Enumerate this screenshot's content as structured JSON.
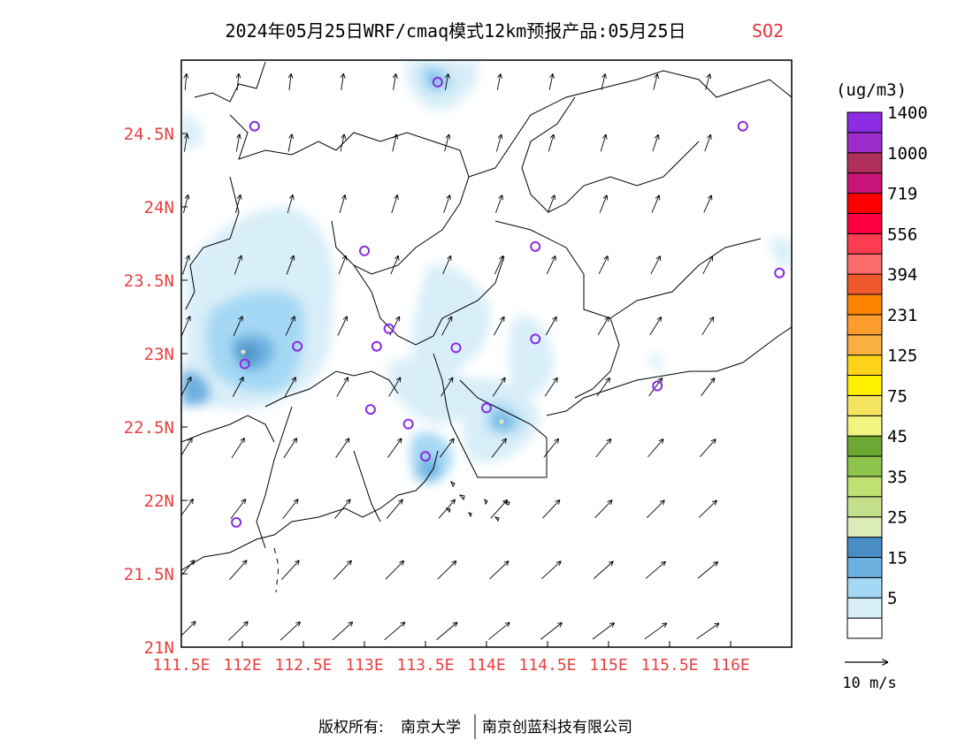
{
  "title": {
    "main": "2024年05月25日WRF/cmaq模式12km预报产品:05月25日",
    "species": "SO2",
    "species_color": "#e8323c"
  },
  "axes": {
    "lat_labels": [
      "24.5N",
      "24N",
      "23.5N",
      "23N",
      "22.5N",
      "22N",
      "21.5N",
      "21N"
    ],
    "lat_values": [
      24.5,
      24,
      23.5,
      23,
      22.5,
      22,
      21.5,
      21
    ],
    "lon_labels": [
      "111.5E",
      "112E",
      "112.5E",
      "113E",
      "113.5E",
      "114E",
      "114.5E",
      "115E",
      "115.5E",
      "116E"
    ],
    "lon_values": [
      111.5,
      112,
      112.5,
      113,
      113.5,
      114,
      114.5,
      115,
      115.5,
      116
    ],
    "lon_range": [
      111.5,
      116.5
    ],
    "lat_range": [
      21,
      25
    ],
    "label_color": "#e84040"
  },
  "legend": {
    "unit": "(ug/m3)",
    "colors": [
      "#ffffff",
      "#d8eef8",
      "#a4d8f4",
      "#6cb0e0",
      "#4a8cc4",
      "#dcecb8",
      "#c4e08c",
      "#c0e074",
      "#8cc44c",
      "#6ca834",
      "#f0f480",
      "#f4e460",
      "#fff000",
      "#ffd418",
      "#f8b040",
      "#fc9c2c",
      "#fc8400",
      "#ee5a2c",
      "#fc6c6c",
      "#fc3c50",
      "#fc0040",
      "#fc0000",
      "#c81478",
      "#b0305c",
      "#9c2ccc",
      "#8c2ce4"
    ],
    "labels": [
      "5",
      "15",
      "25",
      "35",
      "45",
      "75",
      "125",
      "231",
      "394",
      "556",
      "719",
      "1000",
      "1400"
    ],
    "wind_scale_label": "10 m/s"
  },
  "markers": {
    "city_points": [
      [
        112.1,
        24.55
      ],
      [
        113.0,
        23.7
      ],
      [
        114.4,
        23.73
      ],
      [
        116.4,
        23.55
      ],
      [
        113.2,
        23.17
      ],
      [
        113.1,
        23.05
      ],
      [
        112.45,
        23.05
      ],
      [
        112.02,
        22.93
      ],
      [
        113.75,
        23.04
      ],
      [
        114.4,
        23.1
      ],
      [
        113.05,
        22.62
      ],
      [
        113.36,
        22.52
      ],
      [
        114.0,
        22.63
      ],
      [
        115.4,
        22.78
      ],
      [
        113.5,
        22.3
      ],
      [
        111.95,
        21.85
      ],
      [
        116.1,
        24.55
      ],
      [
        113.6,
        24.85
      ]
    ],
    "marker_color": "#8a2be2"
  },
  "footer": {
    "copyright_prefix": "版权所有:",
    "org1": "南京大学",
    "org2": "南京创蓝科技有限公司"
  }
}
